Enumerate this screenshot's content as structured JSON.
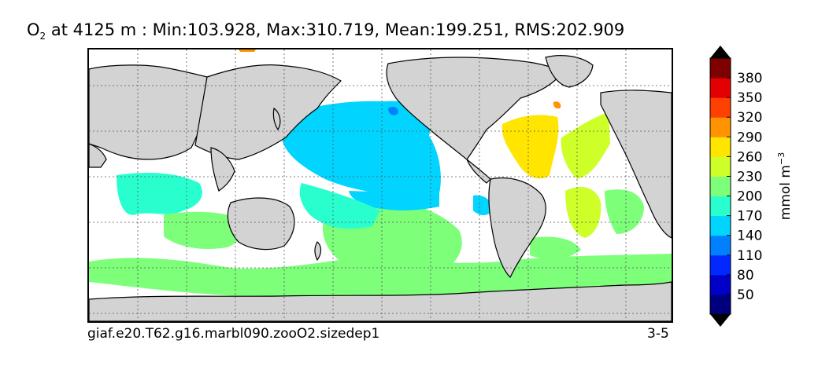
{
  "title": {
    "variable": "O",
    "subscript": "2",
    "text": " at 4125 m : Min:103.928, Max:310.719, Mean:199.251, RMS:202.909"
  },
  "footer": {
    "case_name": "giaf.e20.T62.g16.marbl090.zooO2.sizedep1",
    "years": "3-5"
  },
  "colorbar": {
    "units_main": "mmol m",
    "units_exp": "−3",
    "ticks": [
      "50",
      "80",
      "110",
      "140",
      "170",
      "200",
      "230",
      "260",
      "290",
      "320",
      "350",
      "380"
    ],
    "colors": [
      "#00007f",
      "#0000c8",
      "#0028ff",
      "#0080ff",
      "#00d4ff",
      "#29ffce",
      "#7dff7a",
      "#ceff29",
      "#ffe500",
      "#ff9400",
      "#ff4000",
      "#e40000",
      "#7f0000"
    ]
  },
  "map": {
    "land_color": "#d3d3d3",
    "no_data_color": "#ffffff",
    "grid": "dotted"
  }
}
